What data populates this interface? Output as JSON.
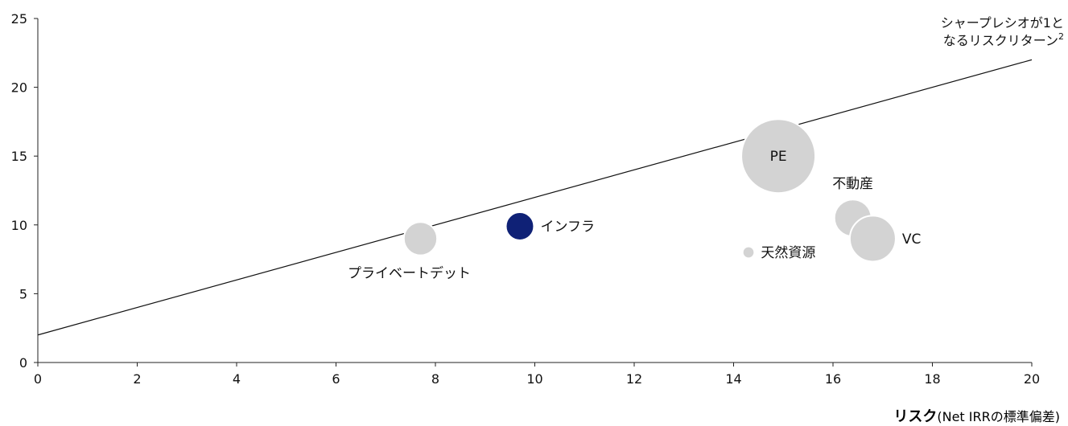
{
  "chart_data": {
    "type": "scatter",
    "subtype": "bubble",
    "x": {
      "min": 0,
      "max": 20,
      "ticks": [
        0,
        2,
        4,
        6,
        8,
        10,
        12,
        14,
        16,
        18,
        20
      ]
    },
    "y": {
      "min": 0,
      "max": 25,
      "ticks": [
        0,
        5,
        10,
        15,
        20,
        25
      ]
    },
    "xlabel_bold": "リスク",
    "xlabel_rest": "(Net IRRの標準偏差)",
    "grid": false,
    "points": [
      {
        "label": "プライベートデット",
        "x": 7.7,
        "y": 9.0,
        "size": 0.45,
        "color": "#d3d3d3",
        "label_pos": "below-left"
      },
      {
        "label": "インフラ",
        "x": 9.7,
        "y": 9.9,
        "size": 0.38,
        "color": "#0f2176",
        "label_pos": "right"
      },
      {
        "label": "PE",
        "x": 14.9,
        "y": 15.0,
        "size": 1.0,
        "color": "#d3d3d3",
        "label_pos": "center"
      },
      {
        "label": "不動産",
        "x": 16.4,
        "y": 10.5,
        "size": 0.5,
        "color": "#d3d3d3",
        "label_pos": "above"
      },
      {
        "label": "VC",
        "x": 16.8,
        "y": 9.0,
        "size": 0.62,
        "color": "#d3d3d3",
        "label_pos": "right"
      },
      {
        "label": "天然資源",
        "x": 14.3,
        "y": 8.0,
        "size": 0.16,
        "color": "#d3d3d3",
        "label_pos": "right"
      }
    ],
    "reference_line": {
      "label_line1": "シャープレシオが1と",
      "label_line2": "なるリスクリターン",
      "label_sup": "2",
      "points": [
        [
          0,
          2
        ],
        [
          20,
          22
        ]
      ]
    }
  }
}
